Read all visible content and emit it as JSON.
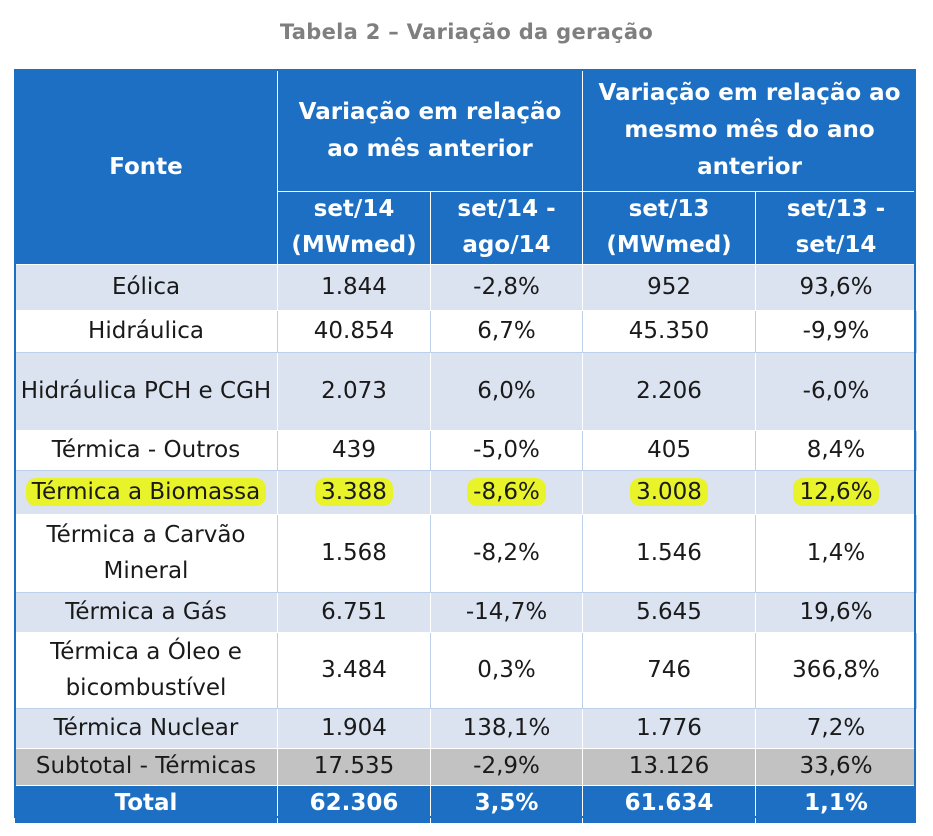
{
  "title": "Tabela 2 – Variação da geração",
  "header": {
    "fonte": "Fonte",
    "group_prev_month": "Variação em relação ao mês anterior",
    "group_prev_year": "Variação em relação ao mesmo mês do ano anterior",
    "columns": [
      "set/14 (MWmed)",
      "set/14 - ago/14",
      "set/13 (MWmed)",
      "set/13 - set/14"
    ]
  },
  "rows": [
    {
      "fonte": "Eólica",
      "v1": "1.844",
      "v2": "-2,8%",
      "v3": "952",
      "v4": "93,6%",
      "style": "band"
    },
    {
      "fonte": "Hidráulica",
      "v1": "40.854",
      "v2": "6,7%",
      "v3": "45.350",
      "v4": "-9,9%",
      "style": "plain"
    },
    {
      "fonte": "Hidráulica PCH e CGH",
      "v1": "2.073",
      "v2": "6,0%",
      "v3": "2.206",
      "v4": "-6,0%",
      "style": "band"
    },
    {
      "fonte": "Térmica - Outros",
      "v1": "439",
      "v2": "-5,0%",
      "v3": "405",
      "v4": "8,4%",
      "style": "plain"
    },
    {
      "fonte": "Térmica a Biomassa",
      "v1": "3.388",
      "v2": "-8,6%",
      "v3": "3.008",
      "v4": "12,6%",
      "style": "band",
      "highlight": true
    },
    {
      "fonte": "Térmica a Carvão Mineral",
      "v1": "1.568",
      "v2": "-8,2%",
      "v3": "1.546",
      "v4": "1,4%",
      "style": "plain"
    },
    {
      "fonte": "Térmica a Gás",
      "v1": "6.751",
      "v2": "-14,7%",
      "v3": "5.645",
      "v4": "19,6%",
      "style": "band"
    },
    {
      "fonte": "Térmica a Óleo e bicombustível",
      "v1": "3.484",
      "v2": "0,3%",
      "v3": "746",
      "v4": "366,8%",
      "style": "plain"
    },
    {
      "fonte": "Térmica Nuclear",
      "v1": "1.904",
      "v2": "138,1%",
      "v3": "1.776",
      "v4": "7,2%",
      "style": "band"
    },
    {
      "fonte": "Subtotal - Térmicas",
      "v1": "17.535",
      "v2": "-2,9%",
      "v3": "13.126",
      "v4": "33,6%",
      "style": "subtotal"
    },
    {
      "fonte": "Total",
      "v1": "62.306",
      "v2": "3,5%",
      "v3": "61.634",
      "v4": "1,1%",
      "style": "total"
    }
  ],
  "colors": {
    "header_blue": "#1c6fc2",
    "band_blue": "#dbe3f1",
    "subtotal_gray": "#c2c2c2",
    "highlight_yellow": "#e8f32a"
  }
}
